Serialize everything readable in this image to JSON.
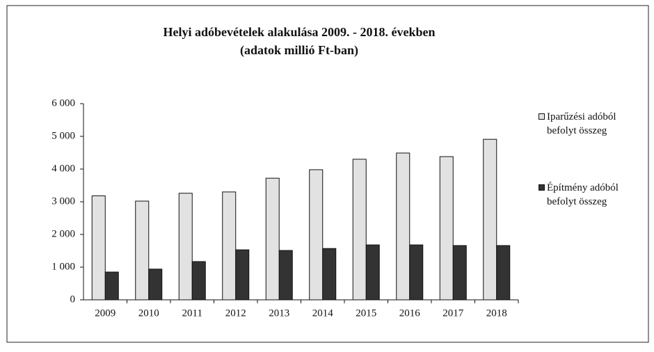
{
  "chart_data": {
    "type": "bar",
    "title": "Helyi adóbevételek alakulása 2009. - 2018. években",
    "subtitle": "(adatok millió Ft-ban)",
    "categories": [
      "2009",
      "2010",
      "2011",
      "2012",
      "2013",
      "2014",
      "2015",
      "2016",
      "2017",
      "2018"
    ],
    "series": [
      {
        "name": "Iparűzési adóból befolyt összeg",
        "color": "#e2e2e2",
        "values": [
          3180,
          3020,
          3260,
          3300,
          3720,
          3980,
          4300,
          4490,
          4380,
          4910
        ]
      },
      {
        "name": "Építmény adóból befolyt összeg",
        "color": "#333333",
        "values": [
          850,
          940,
          1170,
          1530,
          1510,
          1570,
          1680,
          1680,
          1660,
          1660
        ]
      }
    ],
    "ylim": [
      0,
      6000
    ],
    "yticks": [
      0,
      {
        "value": 1000,
        "label": "1 000"
      },
      {
        "value": 2000,
        "label": "2 000"
      },
      {
        "value": 3000,
        "label": "3 000"
      },
      {
        "value": 4000,
        "label": "4 000"
      },
      {
        "value": 5000,
        "label": "5 000"
      },
      {
        "value": 6000,
        "label": "6 000"
      }
    ],
    "grid": false,
    "legend": "right"
  }
}
